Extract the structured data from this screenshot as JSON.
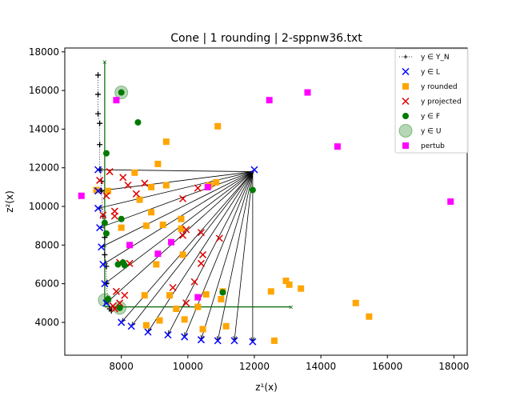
{
  "chart_data": {
    "type": "scatter",
    "title": "Cone | 1 rounding | 2-sppnw36.txt",
    "xlabel": "z¹(x)",
    "ylabel": "z²(x)",
    "xlim": [
      6300,
      18400
    ],
    "ylim": [
      2300,
      18200
    ],
    "xticks": [
      8000,
      10000,
      12000,
      14000,
      16000,
      18000
    ],
    "yticks": [
      4000,
      6000,
      8000,
      10000,
      12000,
      14000,
      16000,
      18000
    ],
    "xtick_labels": [
      "8000",
      "10000",
      "12000",
      "14000",
      "16000",
      "18000"
    ],
    "ytick_labels": [
      "4000",
      "6000",
      "8000",
      "10000",
      "12000",
      "14000",
      "16000",
      "18000"
    ],
    "grid": false,
    "legend_position": "top-right",
    "colors": {
      "YN": "#000000",
      "L": "#0000ff",
      "rounded": "#ffa500",
      "projected": "#e00000",
      "F": "#007a00",
      "U": "#2e8b2e",
      "pertub": "#ff00ff",
      "cone": "#006400",
      "rays": "#000000"
    },
    "legend": [
      {
        "key": "YN",
        "label": "y ∈ Y_N"
      },
      {
        "key": "L",
        "label": "y ∈ L"
      },
      {
        "key": "rounded",
        "label": "y rounded"
      },
      {
        "key": "projected",
        "label": "y projected"
      },
      {
        "key": "F",
        "label": "y ∈ F"
      },
      {
        "key": "U",
        "label": "y ∈ U"
      },
      {
        "key": "pertub",
        "label": "pertub"
      }
    ],
    "yn_front": [
      [
        7300,
        16800
      ],
      [
        7300,
        15800
      ],
      [
        7300,
        14800
      ],
      [
        7350,
        14300
      ],
      [
        7350,
        13200
      ],
      [
        7350,
        11900
      ],
      [
        7400,
        11300
      ],
      [
        7400,
        10800
      ],
      [
        7450,
        9500
      ],
      [
        7500,
        8400
      ],
      [
        7500,
        7500
      ],
      [
        7550,
        6900
      ],
      [
        7550,
        6000
      ],
      [
        7600,
        5100
      ],
      [
        7650,
        4700
      ],
      [
        7700,
        4600
      ]
    ],
    "cone_point": [
      7500,
      4800
    ],
    "cone_top": [
      7500,
      17500
    ],
    "cone_right": [
      13100,
      4800
    ],
    "ray_origin": [
      11950,
      11800
    ],
    "L": [
      [
        7300,
        11900
      ],
      [
        7300,
        10800
      ],
      [
        7300,
        9900
      ],
      [
        7350,
        8900
      ],
      [
        7400,
        7900
      ],
      [
        7450,
        7000
      ],
      [
        7500,
        6000
      ],
      [
        7550,
        5000
      ],
      [
        8000,
        4000
      ],
      [
        8300,
        3800
      ],
      [
        8800,
        3500
      ],
      [
        9400,
        3350
      ],
      [
        9900,
        3250
      ],
      [
        10400,
        3100
      ],
      [
        10900,
        3050
      ],
      [
        11400,
        3050
      ],
      [
        11950,
        3000
      ],
      [
        12000,
        11900
      ]
    ],
    "rounded": [
      [
        7250,
        10850
      ],
      [
        7600,
        10800
      ],
      [
        8000,
        8900
      ],
      [
        8400,
        11750
      ],
      [
        8550,
        10350
      ],
      [
        8750,
        9000
      ],
      [
        8900,
        9700
      ],
      [
        8900,
        11000
      ],
      [
        9050,
        7000
      ],
      [
        9100,
        12200
      ],
      [
        9250,
        9050
      ],
      [
        9350,
        11100
      ],
      [
        9350,
        13350
      ],
      [
        9450,
        5400
      ],
      [
        9650,
        4700
      ],
      [
        9800,
        8850
      ],
      [
        9800,
        9350
      ],
      [
        9850,
        7500
      ],
      [
        9900,
        4150
      ],
      [
        10300,
        4800
      ],
      [
        10450,
        3650
      ],
      [
        10550,
        5450
      ],
      [
        10650,
        11100
      ],
      [
        10850,
        11250
      ],
      [
        10900,
        14150
      ],
      [
        11000,
        5200
      ],
      [
        11050,
        5600
      ],
      [
        11150,
        3800
      ],
      [
        12500,
        5600
      ],
      [
        12600,
        3050
      ],
      [
        12950,
        6150
      ],
      [
        13050,
        5950
      ],
      [
        13400,
        5750
      ],
      [
        15050,
        5000
      ],
      [
        15450,
        4300
      ],
      [
        8700,
        5400
      ],
      [
        8750,
        3850
      ],
      [
        9150,
        4100
      ]
    ],
    "projected": [
      [
        7350,
        11350
      ],
      [
        7450,
        9550
      ],
      [
        7550,
        10550
      ],
      [
        7650,
        11800
      ],
      [
        7800,
        9750
      ],
      [
        7800,
        9500
      ],
      [
        7850,
        5600
      ],
      [
        7750,
        4850
      ],
      [
        7800,
        4700
      ],
      [
        7950,
        5000
      ],
      [
        8050,
        11500
      ],
      [
        8100,
        5400
      ],
      [
        8200,
        11100
      ],
      [
        8450,
        10650
      ],
      [
        8700,
        11200
      ],
      [
        9550,
        5800
      ],
      [
        9850,
        10400
      ],
      [
        9850,
        8500
      ],
      [
        9950,
        8800
      ],
      [
        9950,
        5000
      ],
      [
        10200,
        6100
      ],
      [
        10300,
        10950
      ],
      [
        10400,
        8650
      ],
      [
        10400,
        7050
      ],
      [
        10450,
        7500
      ],
      [
        10950,
        8350
      ],
      [
        8250,
        7050
      ],
      [
        7950,
        7100
      ]
    ],
    "F": [
      [
        7550,
        12750
      ],
      [
        7550,
        8600
      ],
      [
        7500,
        9150
      ],
      [
        8000,
        15900
      ],
      [
        8500,
        14350
      ],
      [
        8000,
        9350
      ],
      [
        7900,
        7000
      ],
      [
        8100,
        6950
      ],
      [
        8050,
        7100
      ],
      [
        7600,
        5200
      ],
      [
        7950,
        4750
      ],
      [
        11050,
        5550
      ],
      [
        11950,
        10850
      ]
    ],
    "U": [
      [
        7500,
        5150
      ],
      [
        7950,
        4750
      ],
      [
        8000,
        15900
      ]
    ],
    "pertub": [
      [
        6800,
        10550
      ],
      [
        7850,
        15500
      ],
      [
        8250,
        8000
      ],
      [
        9100,
        7550
      ],
      [
        9500,
        8150
      ],
      [
        10300,
        5300
      ],
      [
        10600,
        11000
      ],
      [
        12450,
        15500
      ],
      [
        13600,
        15900
      ],
      [
        14500,
        13100
      ],
      [
        17900,
        10250
      ]
    ]
  }
}
